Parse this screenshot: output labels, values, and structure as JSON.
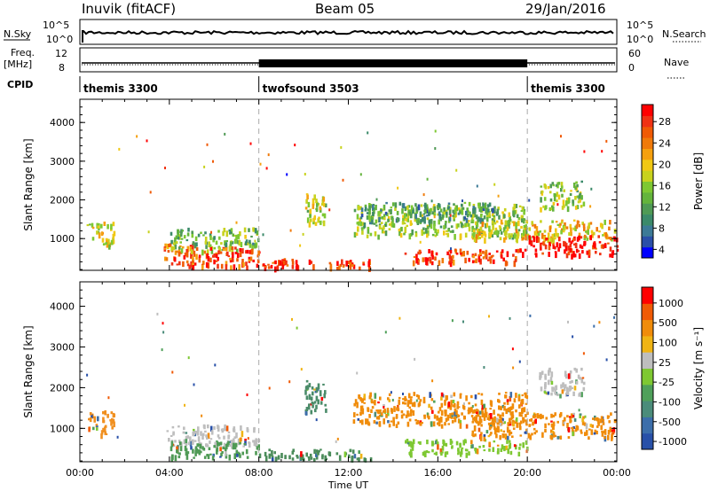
{
  "header": {
    "station": "Inuvik (fitACF)",
    "beam": "Beam 05",
    "date": "29/Jan/2016"
  },
  "top_panels": {
    "nsky_label": "N.Sky",
    "nsky_ticks": [
      "10^5",
      "10^0"
    ],
    "nsearch_label": "N.Search",
    "nsearch_ticks": [
      "10^5",
      "10^0"
    ],
    "freq_label": "Freq.",
    "freq_unit": "[MHz]",
    "freq_ticks": [
      "12",
      "8"
    ],
    "nave_label": "Nave",
    "nave_ticks": [
      "60",
      "0"
    ],
    "cpid_label": "CPID",
    "cpid_segments": [
      {
        "name": "themis 3300",
        "start_h": 0,
        "end_h": 8
      },
      {
        "name": "twofsound 3503",
        "start_h": 8,
        "end_h": 20
      },
      {
        "name": "themis 3300",
        "start_h": 20,
        "end_h": 24
      }
    ]
  },
  "chart_data": [
    {
      "type": "heatmap",
      "title": "",
      "ylabel": "Slant Range [km]",
      "xlabel": "Time UT",
      "xlim_hours": [
        0,
        24
      ],
      "x_ticks": [
        "00:00",
        "04:00",
        "08:00",
        "12:00",
        "16:00",
        "20:00",
        "00:00"
      ],
      "ylim": [
        180,
        4600
      ],
      "y_ticks": [
        1000,
        2000,
        3000,
        4000
      ],
      "colorbar": {
        "label": "Power [dB]",
        "ticks": [
          "28",
          "24",
          "20",
          "16",
          "12",
          "8",
          "4"
        ],
        "colors": [
          "#0000ff",
          "#2a4fa8",
          "#3c7a96",
          "#3b8a6a",
          "#4f9a55",
          "#64b43c",
          "#7ec832",
          "#c8d21e",
          "#f0c814",
          "#f5a00f",
          "#f07a0a",
          "#f05a05",
          "#f03214",
          "#ff0000"
        ]
      },
      "regions": [
        {
          "t0": 0.3,
          "t1": 1.5,
          "r0": 850,
          "r1": 1450,
          "level": 0.55
        },
        {
          "t0": 3.7,
          "t1": 5.2,
          "r0": 300,
          "r1": 900,
          "level": 0.8
        },
        {
          "t0": 4.0,
          "t1": 8.0,
          "r0": 700,
          "r1": 1300,
          "level": 0.4
        },
        {
          "t0": 5.0,
          "t1": 8.0,
          "r0": 300,
          "r1": 800,
          "level": 0.85
        },
        {
          "t0": 8.0,
          "t1": 13.0,
          "r0": 250,
          "r1": 500,
          "level": 0.9
        },
        {
          "t0": 10.0,
          "t1": 11.0,
          "r0": 1400,
          "r1": 2200,
          "level": 0.5
        },
        {
          "t0": 12.2,
          "t1": 20.0,
          "r0": 1100,
          "r1": 1900,
          "level": 0.45
        },
        {
          "t0": 12.5,
          "t1": 18.5,
          "r0": 1500,
          "r1": 1950,
          "level": 0.3
        },
        {
          "t0": 14.5,
          "t1": 20.0,
          "r0": 400,
          "r1": 750,
          "level": 0.88
        },
        {
          "t0": 17.5,
          "t1": 23.9,
          "r0": 1000,
          "r1": 1500,
          "level": 0.6
        },
        {
          "t0": 20.0,
          "t1": 24.0,
          "r0": 600,
          "r1": 1100,
          "level": 0.95
        },
        {
          "t0": 20.5,
          "t1": 22.5,
          "r0": 1800,
          "r1": 2500,
          "level": 0.45
        }
      ]
    },
    {
      "type": "heatmap",
      "title": "",
      "ylabel": "Slant Range [km]",
      "xlabel": "Time UT",
      "xlim_hours": [
        0,
        24
      ],
      "x_ticks": [
        "00:00",
        "04:00",
        "08:00",
        "12:00",
        "16:00",
        "20:00",
        "00:00"
      ],
      "ylim": [
        180,
        4600
      ],
      "y_ticks": [
        1000,
        2000,
        3000,
        4000
      ],
      "colorbar": {
        "label": "Velocity [m s⁻¹]",
        "ticks": [
          "1000",
          "500",
          "100",
          "25",
          "-25",
          "-100",
          "-500",
          "-1000"
        ],
        "colors": [
          "#2850a8",
          "#3c6eaa",
          "#4b8c7a",
          "#4fa05a",
          "#7ec832",
          "#bebebe",
          "#f0b414",
          "#f08c0a",
          "#f05a05",
          "#ff0000"
        ]
      },
      "regions": [
        {
          "t0": 0.3,
          "t1": 1.5,
          "r0": 850,
          "r1": 1450,
          "color": "#f09020"
        },
        {
          "t0": 3.8,
          "t1": 8.0,
          "r0": 600,
          "r1": 1100,
          "color": "#bebebe"
        },
        {
          "t0": 4.0,
          "t1": 8.0,
          "r0": 300,
          "r1": 700,
          "color": "#4f9a55"
        },
        {
          "t0": 8.0,
          "t1": 13.0,
          "r0": 250,
          "r1": 500,
          "color": "#4b8c5a"
        },
        {
          "t0": 10.0,
          "t1": 11.0,
          "r0": 1400,
          "r1": 2200,
          "color": "#4b8c6a"
        },
        {
          "t0": 12.2,
          "t1": 20.0,
          "r0": 1100,
          "r1": 1900,
          "color": "#f08c0a"
        },
        {
          "t0": 14.5,
          "t1": 20.0,
          "r0": 400,
          "r1": 750,
          "color": "#7ec832"
        },
        {
          "t0": 17.5,
          "t1": 23.9,
          "r0": 800,
          "r1": 1400,
          "color": "#f08c0a"
        },
        {
          "t0": 20.5,
          "t1": 22.5,
          "r0": 1800,
          "r1": 2500,
          "color": "#bebebe"
        }
      ]
    }
  ]
}
